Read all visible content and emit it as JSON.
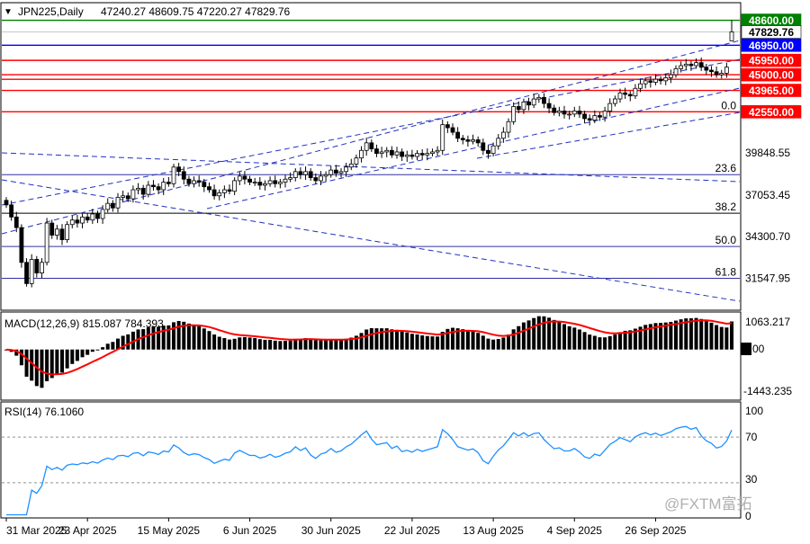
{
  "header": {
    "symbol": "JPN225,Daily",
    "ohlc": "47240.27 48609.75 47220.27 47829.76",
    "menu_glyph": "▼"
  },
  "price_panel": {
    "hlines": [
      {
        "value": 48600.0,
        "label": "48600.00",
        "color": "#008000",
        "badge": true
      },
      {
        "value": 47829.76,
        "label": "47829.76",
        "color": "#c8c8c8",
        "badge": true
      },
      {
        "value": 46950.0,
        "label": "46950.00",
        "color": "#0000ff",
        "badge": true
      },
      {
        "value": 45950.0,
        "label": "45950.00",
        "color": "#ff0000",
        "badge": true
      },
      {
        "value": 45000.0,
        "label": "45000.00",
        "color": "#ff0000",
        "badge": true
      },
      {
        "value": 43965.0,
        "label": "43965.00",
        "color": "#ff0000",
        "badge": true
      },
      {
        "value": 42550.0,
        "label": "42550.00",
        "color": "#ff0000",
        "badge": true
      }
    ],
    "extra_hline": {
      "value": 44700
    },
    "axis_labels": [
      "39848.55",
      "37053.45",
      "34300.70",
      "31547.95"
    ],
    "fib_levels": [
      {
        "label": "0.0",
        "value": 42550
      },
      {
        "label": "23.6",
        "value": 38400
      },
      {
        "label": "38.2",
        "value": 35850
      },
      {
        "label": "50.0",
        "value": 33650
      },
      {
        "label": "61.8",
        "value": 31550
      }
    ]
  },
  "macd_panel": {
    "label": "MACD(12,26,9) 815.087 784.393",
    "axis_labels": [
      "1063.217",
      "0.00",
      "-1443.235"
    ],
    "signal_color": "#ff0000",
    "histogram_color": "#000000"
  },
  "rsi_panel": {
    "label": "RSI(14) 76.1060",
    "axis_labels": [
      "100",
      "70",
      "30",
      "0"
    ],
    "line_color": "#1e90ff"
  },
  "x_labels": [
    "31 Mar 2025",
    "23 Apr 2025",
    "15 May 2025",
    "6 Jun 2025",
    "30 Jun 2025",
    "22 Jul 2025",
    "13 Aug 2025",
    "4 Sep 2025",
    "26 Sep 2025"
  ],
  "watermark": "@FXTM富拓",
  "chart_data": {
    "type": "candlestick",
    "symbol": "JPN225",
    "timeframe": "Daily",
    "last_ohlc": {
      "open": 47240.27,
      "high": 48609.75,
      "low": 47220.27,
      "close": 47829.76
    },
    "x_ticks": [
      "31 Mar 2025",
      "23 Apr 2025",
      "15 May 2025",
      "6 Jun 2025",
      "30 Jun 2025",
      "22 Jul 2025",
      "13 Aug 2025",
      "4 Sep 2025",
      "26 Sep 2025"
    ],
    "price_ylim": [
      29500,
      49700
    ],
    "closes": [
      36400,
      35600,
      34900,
      32600,
      31200,
      32800,
      31900,
      32600,
      35200,
      34400,
      34800,
      34100,
      35100,
      35400,
      35200,
      35600,
      35400,
      35800,
      35500,
      36100,
      36500,
      36200,
      36900,
      37000,
      36800,
      37400,
      37500,
      37100,
      37700,
      37600,
      37400,
      37900,
      37800,
      38900,
      38600,
      38100,
      37800,
      38000,
      37900,
      37600,
      37400,
      37000,
      37200,
      37400,
      37300,
      38000,
      38300,
      38100,
      37900,
      37900,
      37700,
      37800,
      38000,
      37800,
      37900,
      38100,
      38200,
      38600,
      38400,
      38600,
      38200,
      38000,
      38300,
      38400,
      38700,
      38500,
      38600,
      38900,
      39100,
      39500,
      40000,
      40500,
      40100,
      39800,
      39900,
      40000,
      39700,
      39900,
      39600,
      39700,
      39600,
      39800,
      39700,
      39800,
      39900,
      40000,
      41700,
      41500,
      41200,
      40800,
      40700,
      40600,
      40700,
      40500,
      40000,
      39800,
      40300,
      40800,
      41200,
      41900,
      42900,
      42700,
      43200,
      43000,
      43400,
      43500,
      43100,
      42800,
      42500,
      42600,
      42400,
      42400,
      42600,
      42400,
      42100,
      42000,
      42300,
      42200,
      42600,
      43100,
      43400,
      43800,
      43700,
      43600,
      44100,
      44400,
      44600,
      44500,
      44700,
      44600,
      44800,
      45000,
      45400,
      45600,
      45700,
      45600,
      45800,
      45500,
      45300,
      45200,
      45000,
      45100,
      45500,
      47830
    ],
    "macd_ylim": [
      -1443.235,
      1063.217
    ],
    "macd_signal": 784.393,
    "macd_main": 815.087,
    "rsi": 76.106,
    "rsi_levels": [
      30,
      70
    ],
    "fibonacci": [
      {
        "level": "0.0",
        "price": 42550
      },
      {
        "level": "23.6",
        "price": 38400
      },
      {
        "level": "38.2",
        "price": 35850
      },
      {
        "level": "50.0",
        "price": 33650
      },
      {
        "level": "61.8",
        "price": 31550
      }
    ],
    "support_resistance": [
      48600.0,
      46950.0,
      45950.0,
      45000.0,
      43965.0,
      42550.0
    ]
  }
}
